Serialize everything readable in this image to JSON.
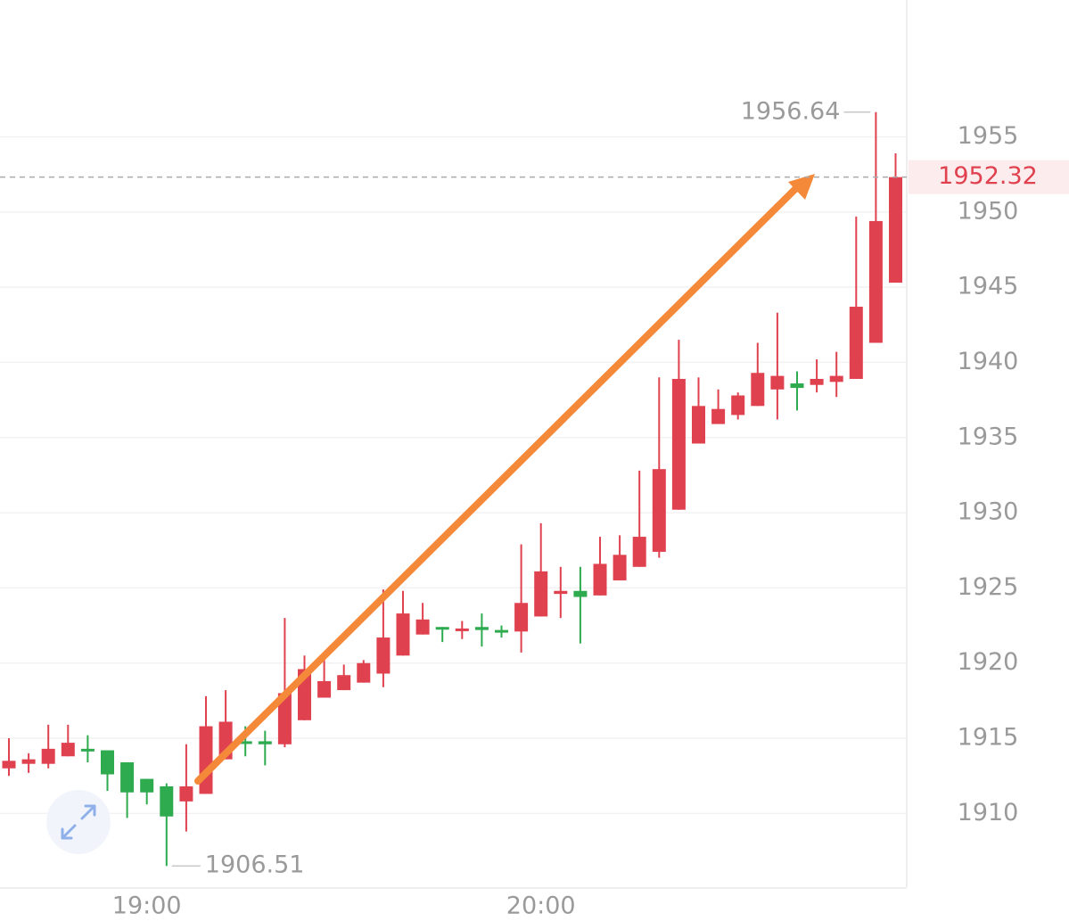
{
  "chart_data": {
    "type": "candlestick",
    "categories": [
      null,
      null,
      null,
      null,
      null,
      null,
      null,
      "19:00",
      null,
      null,
      null,
      null,
      null,
      null,
      null,
      null,
      null,
      null,
      null,
      null,
      null,
      null,
      null,
      null,
      null,
      null,
      null,
      "20:00",
      null,
      null,
      null,
      null,
      null,
      null,
      null,
      null,
      null,
      null,
      null,
      null,
      null,
      null,
      null,
      null,
      null,
      null
    ],
    "open": [
      1913.0,
      1913.3,
      1913.3,
      1913.8,
      1914.3,
      1914.2,
      1913.4,
      1912.3,
      1911.8,
      1910.8,
      1911.3,
      1913.6,
      1914.8,
      1914.8,
      1914.6,
      1916.2,
      1917.7,
      1918.2,
      1918.7,
      1919.3,
      1920.5,
      1921.9,
      1922.4,
      1922.2,
      1922.4,
      1922.2,
      1922.1,
      1923.1,
      1924.6,
      1924.8,
      1924.5,
      1925.5,
      1926.4,
      1927.4,
      1930.2,
      1934.6,
      1935.9,
      1936.5,
      1937.1,
      1938.2,
      1938.6,
      1938.5,
      1938.7,
      1938.9,
      1941.3,
      1945.3
    ],
    "high": [
      1915.0,
      1914.0,
      1915.9,
      1915.9,
      1915.2,
      1914.2,
      1913.4,
      1912.3,
      1912.0,
      1914.6,
      1917.8,
      1918.2,
      1915.8,
      1915.5,
      1923.0,
      1920.5,
      1920.2,
      1919.9,
      1920.2,
      1924.9,
      1924.8,
      1924.0,
      1922.4,
      1922.8,
      1923.3,
      1922.5,
      1927.9,
      1929.3,
      1926.4,
      1926.4,
      1928.4,
      1928.5,
      1932.8,
      1939.0,
      1941.5,
      1939.0,
      1938.2,
      1938.0,
      1941.3,
      1943.3,
      1939.4,
      1940.2,
      1940.7,
      1949.7,
      1956.64,
      1953.9
    ],
    "low": [
      1912.5,
      1912.7,
      1913.0,
      1913.8,
      1913.4,
      1911.5,
      1909.7,
      1910.6,
      1906.51,
      1908.8,
      1911.3,
      1913.6,
      1913.8,
      1913.2,
      1914.4,
      1916.2,
      1917.7,
      1918.2,
      1918.7,
      1918.4,
      1920.5,
      1921.9,
      1921.4,
      1921.6,
      1921.1,
      1921.7,
      1920.7,
      1923.1,
      1923.0,
      1921.3,
      1924.5,
      1925.5,
      1926.4,
      1927.0,
      1930.2,
      1934.6,
      1935.9,
      1936.2,
      1937.1,
      1936.2,
      1936.8,
      1938.0,
      1937.7,
      1938.9,
      1941.3,
      1945.3
    ],
    "close": [
      1913.5,
      1913.6,
      1914.3,
      1914.7,
      1914.2,
      1912.6,
      1911.4,
      1911.4,
      1909.8,
      1911.8,
      1915.8,
      1916.1,
      1914.7,
      1914.6,
      1918.0,
      1919.6,
      1918.8,
      1919.2,
      1920.0,
      1921.7,
      1923.3,
      1922.9,
      1922.3,
      1922.3,
      1922.2,
      1922.1,
      1924.0,
      1926.1,
      1924.8,
      1924.4,
      1926.6,
      1927.2,
      1928.4,
      1932.9,
      1938.9,
      1937.1,
      1936.9,
      1937.8,
      1939.3,
      1939.1,
      1938.3,
      1938.9,
      1939.1,
      1943.7,
      1949.4,
      1952.32
    ],
    "up_color": "#e0414f",
    "down_color": "#2eaa4f",
    "ylim": [
      1905.1,
      1964.1
    ],
    "yticks": [
      1910,
      1915,
      1920,
      1925,
      1930,
      1935,
      1940,
      1945,
      1950,
      1955
    ],
    "grid": true
  }
}
